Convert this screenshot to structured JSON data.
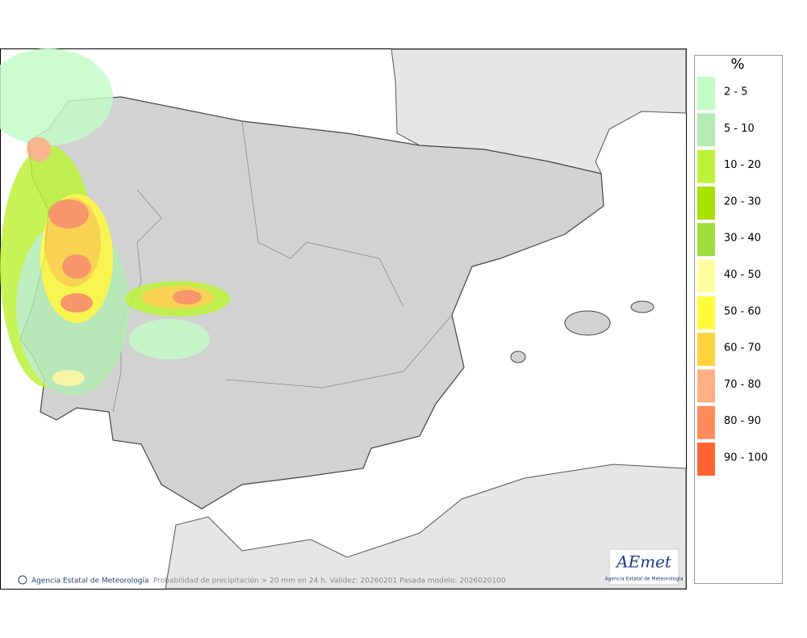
{
  "map": {
    "copyright": "Agencia Estatal de Meteorología",
    "caption": "Probabilidad de precipitación > 20 mm en 24 h. Validez: 20260201 Pasada modelo: 2026020100"
  },
  "legend": {
    "title": "%",
    "items": [
      {
        "label": "2 - 5",
        "color": "#c4fcc8"
      },
      {
        "label": "5 - 10",
        "color": "#b4ecb4"
      },
      {
        "label": "10 - 20",
        "color": "#bef23a"
      },
      {
        "label": "20 - 30",
        "color": "#a8e000"
      },
      {
        "label": "30 - 40",
        "color": "#a0dc3c"
      },
      {
        "label": "40 - 50",
        "color": "#fffca0"
      },
      {
        "label": "50 - 60",
        "color": "#fffc3c"
      },
      {
        "label": "60 - 70",
        "color": "#ffd23c"
      },
      {
        "label": "70 - 80",
        "color": "#ffaf82"
      },
      {
        "label": "80 - 90",
        "color": "#ff8c5a"
      },
      {
        "label": "90 - 100",
        "color": "#ff6432"
      }
    ]
  },
  "logo": {
    "name": "AEmet",
    "subtitle": "Agencia Estatal de Meteorología"
  }
}
